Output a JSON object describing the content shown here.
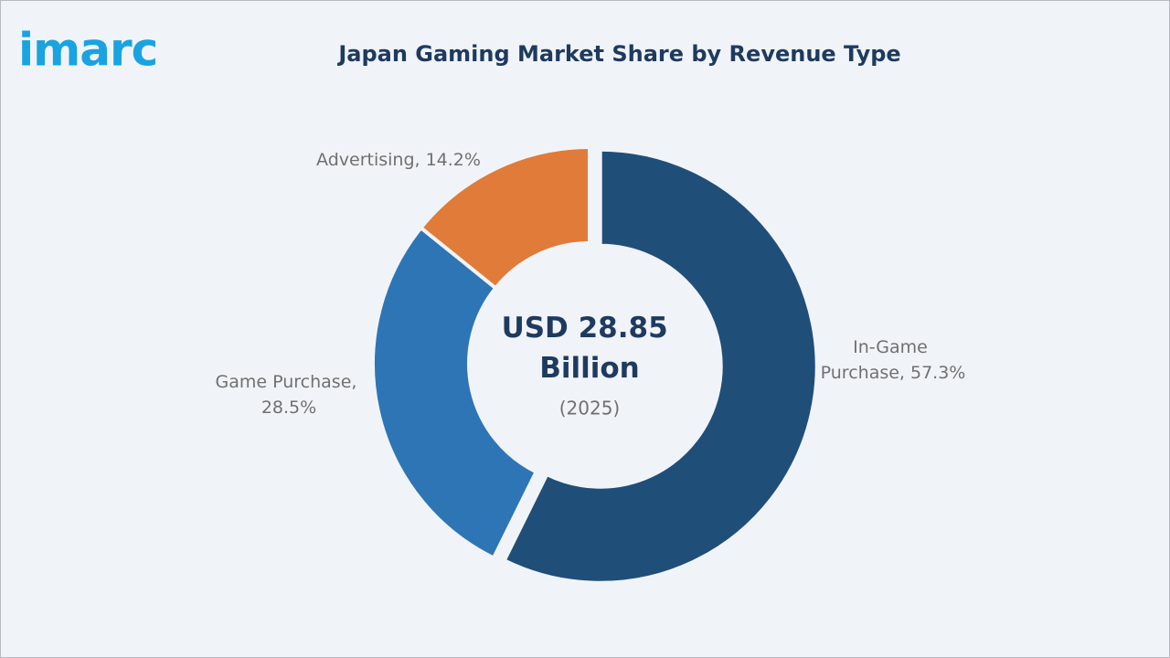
{
  "logo": "imarc",
  "chart_data": {
    "type": "donut",
    "title": "Japan Gaming Market Share by Revenue Type",
    "center_text": "USD 28.85 Billion",
    "center_subtext": "(2025)",
    "values": [
      57.3,
      28.5,
      14.2
    ],
    "value_labels": [
      "In-Game Purchase, 57.3%",
      "Game Purchase, 28.5%",
      "Advertising, 14.2%"
    ],
    "colors": [
      "#1f4e79",
      "#2e75b6",
      "#e07b39"
    ]
  }
}
